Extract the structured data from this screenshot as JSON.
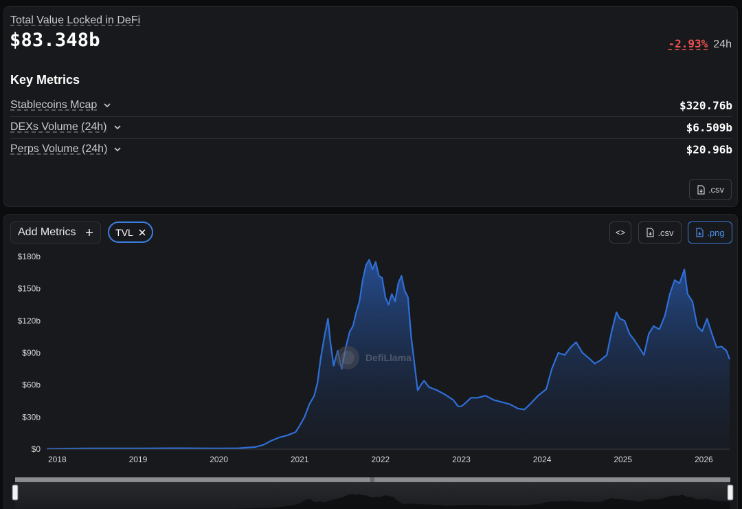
{
  "summary": {
    "tvl_label": "Total Value Locked in DeFi",
    "tvl_value": "$83.348b",
    "change": "-2.93%",
    "period": "24h"
  },
  "key_metrics": {
    "title": "Key Metrics",
    "items": [
      {
        "name": "Stablecoins Mcap",
        "value": "$320.76b"
      },
      {
        "name": "DEXs Volume (24h)",
        "value": "$6.509b"
      },
      {
        "name": "Perps Volume (24h)",
        "value": "$20.96b"
      }
    ],
    "csv_label": ".csv"
  },
  "toolbar": {
    "add_metrics_label": "Add Metrics",
    "tvl_chip_label": "TVL",
    "embed_label": "<>",
    "csv_label": ".csv",
    "png_label": ".png"
  },
  "watermark": "DefiLlama",
  "colors": {
    "accent": "#3b7ddd",
    "line": "#2f6fd8",
    "negative": "#ed5151"
  },
  "chart_data": {
    "type": "area",
    "series": [
      {
        "name": "TVL",
        "unit": "$b"
      }
    ],
    "x_ticks": [
      "2018",
      "2019",
      "2020",
      "2021",
      "2022",
      "2023",
      "2024",
      "2025",
      "2026"
    ],
    "y_ticks": [
      "$0",
      "$30b",
      "$60b",
      "$90b",
      "$120b",
      "$150b",
      "$180b"
    ],
    "ylim": [
      0,
      180
    ],
    "xlim": [
      2017.87,
      2026.32
    ],
    "points": [
      [
        2017.87,
        0.3
      ],
      [
        2018.0,
        0.5
      ],
      [
        2018.5,
        0.8
      ],
      [
        2019.0,
        0.7
      ],
      [
        2019.5,
        0.9
      ],
      [
        2020.0,
        0.8
      ],
      [
        2020.25,
        0.9
      ],
      [
        2020.45,
        2.0
      ],
      [
        2020.55,
        4
      ],
      [
        2020.65,
        8
      ],
      [
        2020.75,
        11
      ],
      [
        2020.85,
        13
      ],
      [
        2020.95,
        16
      ],
      [
        2021.0,
        22
      ],
      [
        2021.06,
        30
      ],
      [
        2021.12,
        42
      ],
      [
        2021.18,
        50
      ],
      [
        2021.22,
        62
      ],
      [
        2021.26,
        85
      ],
      [
        2021.31,
        107
      ],
      [
        2021.35,
        122
      ],
      [
        2021.38,
        100
      ],
      [
        2021.42,
        78
      ],
      [
        2021.47,
        92
      ],
      [
        2021.52,
        75
      ],
      [
        2021.57,
        95
      ],
      [
        2021.62,
        110
      ],
      [
        2021.66,
        115
      ],
      [
        2021.7,
        128
      ],
      [
        2021.74,
        138
      ],
      [
        2021.78,
        158
      ],
      [
        2021.82,
        172
      ],
      [
        2021.86,
        177
      ],
      [
        2021.9,
        168
      ],
      [
        2021.94,
        175
      ],
      [
        2021.98,
        162
      ],
      [
        2022.02,
        160
      ],
      [
        2022.06,
        142
      ],
      [
        2022.1,
        135
      ],
      [
        2022.14,
        145
      ],
      [
        2022.18,
        138
      ],
      [
        2022.22,
        155
      ],
      [
        2022.26,
        162
      ],
      [
        2022.3,
        148
      ],
      [
        2022.34,
        142
      ],
      [
        2022.38,
        105
      ],
      [
        2022.42,
        80
      ],
      [
        2022.46,
        55
      ],
      [
        2022.5,
        60
      ],
      [
        2022.54,
        64
      ],
      [
        2022.6,
        58
      ],
      [
        2022.7,
        55
      ],
      [
        2022.8,
        51
      ],
      [
        2022.9,
        46
      ],
      [
        2022.96,
        40
      ],
      [
        2023.0,
        40
      ],
      [
        2023.05,
        43
      ],
      [
        2023.12,
        48
      ],
      [
        2023.2,
        48
      ],
      [
        2023.3,
        50
      ],
      [
        2023.4,
        46
      ],
      [
        2023.5,
        44
      ],
      [
        2023.6,
        42
      ],
      [
        2023.7,
        38
      ],
      [
        2023.78,
        37
      ],
      [
        2023.85,
        42
      ],
      [
        2023.95,
        50
      ],
      [
        2024.05,
        56
      ],
      [
        2024.12,
        75
      ],
      [
        2024.2,
        90
      ],
      [
        2024.28,
        88
      ],
      [
        2024.35,
        95
      ],
      [
        2024.42,
        100
      ],
      [
        2024.5,
        90
      ],
      [
        2024.58,
        85
      ],
      [
        2024.65,
        80
      ],
      [
        2024.72,
        83
      ],
      [
        2024.8,
        88
      ],
      [
        2024.86,
        110
      ],
      [
        2024.92,
        128
      ],
      [
        2024.96,
        122
      ],
      [
        2025.02,
        120
      ],
      [
        2025.08,
        108
      ],
      [
        2025.14,
        102
      ],
      [
        2025.2,
        95
      ],
      [
        2025.26,
        88
      ],
      [
        2025.32,
        108
      ],
      [
        2025.38,
        115
      ],
      [
        2025.45,
        112
      ],
      [
        2025.52,
        125
      ],
      [
        2025.58,
        145
      ],
      [
        2025.64,
        158
      ],
      [
        2025.7,
        155
      ],
      [
        2025.76,
        168
      ],
      [
        2025.8,
        145
      ],
      [
        2025.86,
        138
      ],
      [
        2025.92,
        115
      ],
      [
        2025.98,
        110
      ],
      [
        2026.04,
        122
      ],
      [
        2026.1,
        108
      ],
      [
        2026.16,
        95
      ],
      [
        2026.22,
        96
      ],
      [
        2026.28,
        92
      ],
      [
        2026.32,
        84
      ]
    ]
  }
}
